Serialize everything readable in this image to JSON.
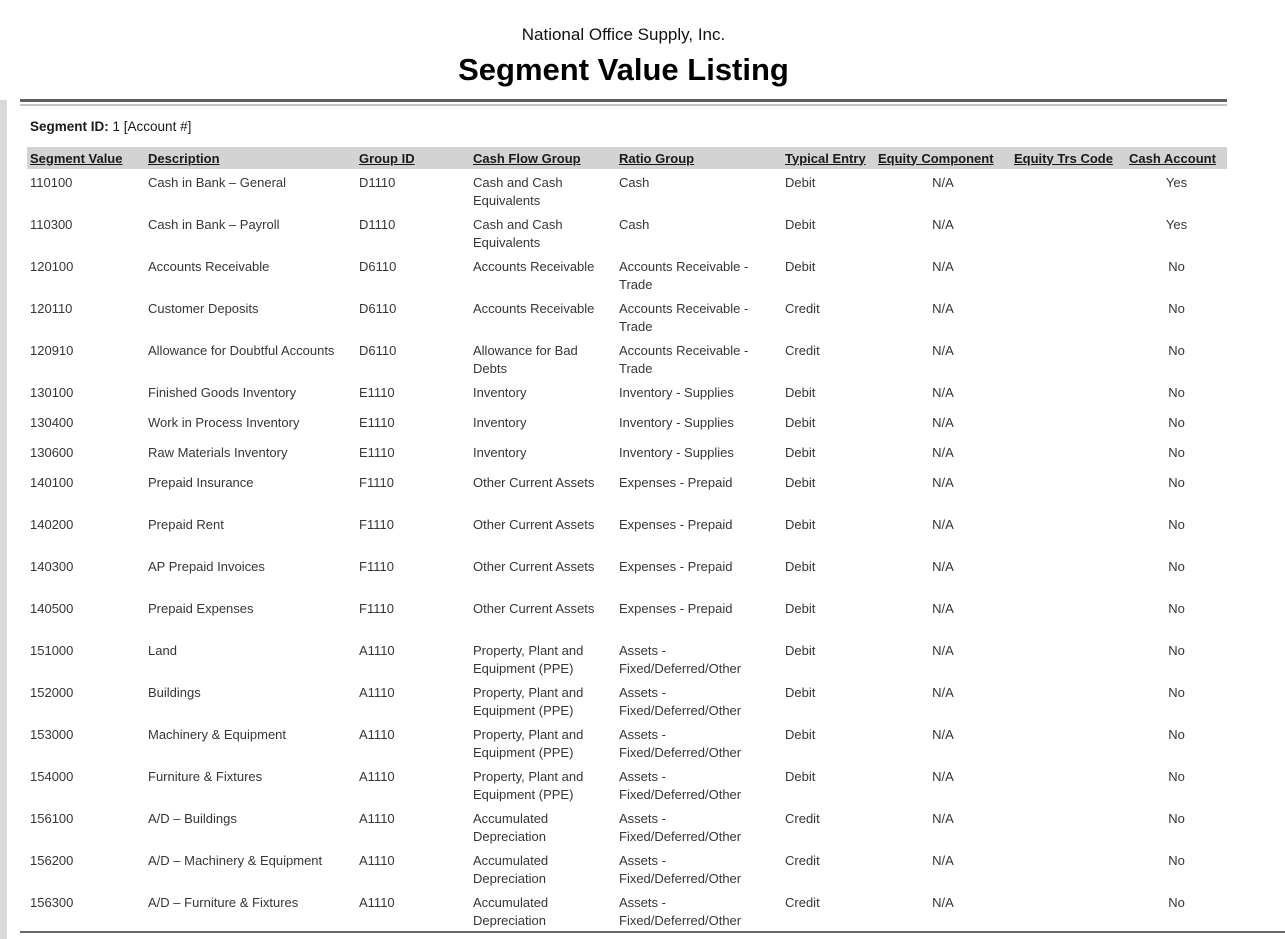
{
  "report": {
    "company": "National Office Supply, Inc.",
    "title": "Segment Value Listing",
    "segment_label": "Segment ID:",
    "segment_value": "1 [Account #]"
  },
  "table": {
    "columns": [
      {
        "key": "segment_value",
        "label": "Segment Value"
      },
      {
        "key": "description",
        "label": "Description"
      },
      {
        "key": "group_id",
        "label": "Group ID"
      },
      {
        "key": "cash_flow_group",
        "label": "Cash Flow Group"
      },
      {
        "key": "ratio_group",
        "label": "Ratio Group"
      },
      {
        "key": "typical_entry",
        "label": "Typical Entry"
      },
      {
        "key": "equity_component",
        "label": "Equity Component"
      },
      {
        "key": "equity_trs_code",
        "label": "Equity Trs Code"
      },
      {
        "key": "cash_account",
        "label": "Cash Account"
      }
    ],
    "rows": [
      [
        "110100",
        "Cash in Bank – General",
        "D1110",
        "Cash and Cash Equivalents",
        "Cash",
        "Debit",
        "N/A",
        "",
        "Yes"
      ],
      [
        "110300",
        "Cash in Bank – Payroll",
        "D1110",
        "Cash and Cash Equivalents",
        "Cash",
        "Debit",
        "N/A",
        "",
        "Yes"
      ],
      [
        "120100",
        "Accounts Receivable",
        "D6110",
        "Accounts Receivable",
        "Accounts Receivable - Trade",
        "Debit",
        "N/A",
        "",
        "No"
      ],
      [
        "120110",
        "Customer Deposits",
        "D6110",
        "Accounts Receivable",
        "Accounts Receivable - Trade",
        "Credit",
        "N/A",
        "",
        "No"
      ],
      [
        "120910",
        "Allowance for Doubtful Accounts",
        "D6110",
        "Allowance for Bad Debts",
        "Accounts Receivable - Trade",
        "Credit",
        "N/A",
        "",
        "No"
      ],
      [
        "130100",
        "Finished Goods Inventory",
        "E1110",
        "Inventory",
        "Inventory - Supplies",
        "Debit",
        "N/A",
        "",
        "No"
      ],
      [
        "130400",
        "Work in Process Inventory",
        "E1110",
        "Inventory",
        "Inventory - Supplies",
        "Debit",
        "N/A",
        "",
        "No"
      ],
      [
        "130600",
        "Raw Materials Inventory",
        "E1110",
        "Inventory",
        "Inventory - Supplies",
        "Debit",
        "N/A",
        "",
        "No"
      ],
      [
        "140100",
        "Prepaid Insurance",
        "F1110",
        "Other Current Assets",
        "Expenses - Prepaid",
        "Debit",
        "N/A",
        "",
        "No"
      ],
      [
        "140200",
        "Prepaid Rent",
        "F1110",
        "Other Current Assets",
        "Expenses - Prepaid",
        "Debit",
        "N/A",
        "",
        "No"
      ],
      [
        "140300",
        "AP Prepaid Invoices",
        "F1110",
        "Other Current Assets",
        "Expenses - Prepaid",
        "Debit",
        "N/A",
        "",
        "No"
      ],
      [
        "140500",
        "Prepaid Expenses",
        "F1110",
        "Other Current Assets",
        "Expenses - Prepaid",
        "Debit",
        "N/A",
        "",
        "No"
      ],
      [
        "151000",
        "Land",
        "A1110",
        "Property, Plant and Equipment (PPE)",
        "Assets - Fixed/Deferred/Other",
        "Debit",
        "N/A",
        "",
        "No"
      ],
      [
        "152000",
        "Buildings",
        "A1110",
        "Property, Plant and Equipment (PPE)",
        "Assets - Fixed/Deferred/Other",
        "Debit",
        "N/A",
        "",
        "No"
      ],
      [
        "153000",
        "Machinery & Equipment",
        "A1110",
        "Property, Plant and Equipment (PPE)",
        "Assets - Fixed/Deferred/Other",
        "Debit",
        "N/A",
        "",
        "No"
      ],
      [
        "154000",
        "Furniture & Fixtures",
        "A1110",
        "Property, Plant and Equipment (PPE)",
        "Assets - Fixed/Deferred/Other",
        "Debit",
        "N/A",
        "",
        "No"
      ],
      [
        "156100",
        "A/D – Buildings",
        "A1110",
        "Accumulated Depreciation",
        "Assets - Fixed/Deferred/Other",
        "Credit",
        "N/A",
        "",
        "No"
      ],
      [
        "156200",
        "A/D – Machinery & Equipment",
        "A1110",
        "Accumulated Depreciation",
        "Assets - Fixed/Deferred/Other",
        "Credit",
        "N/A",
        "",
        "No"
      ],
      [
        "156300",
        "A/D – Furniture & Fixtures",
        "A1110",
        "Accumulated Depreciation",
        "Assets - Fixed/Deferred/Other",
        "Credit",
        "N/A",
        "",
        "No"
      ]
    ]
  },
  "colors": {
    "header_bar": "#d3d3d3",
    "rule_dark": "#5f5f5f",
    "rule_light": "#c4c4c4",
    "footer_rule": "#6a6a6a",
    "body_text": "#363636"
  }
}
